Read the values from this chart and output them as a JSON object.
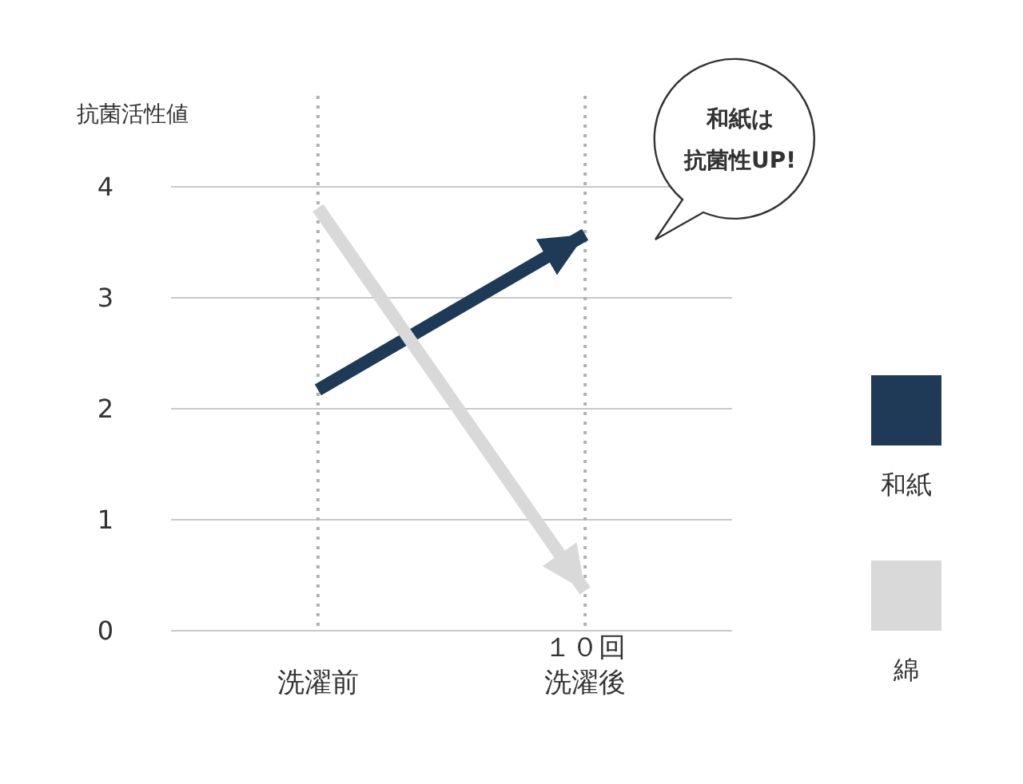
{
  "chart_data": {
    "type": "line",
    "ylabel": "抗菌活性値",
    "categories": [
      "洗濯前",
      "１０回洗濯後"
    ],
    "series": [
      {
        "name": "和紙",
        "color": "#1e3a56",
        "values": [
          2.17,
          3.57
        ]
      },
      {
        "name": "綿",
        "color": "#d9d9d9",
        "values": [
          3.81,
          0.36
        ]
      }
    ],
    "ylim": [
      0,
      4
    ],
    "yticks": [
      0,
      1,
      2,
      3,
      4
    ],
    "grid": true,
    "legend": "right",
    "marker": "none",
    "line_style": "solid",
    "annotations": [
      "和紙は",
      "抗菌性UP!"
    ]
  }
}
